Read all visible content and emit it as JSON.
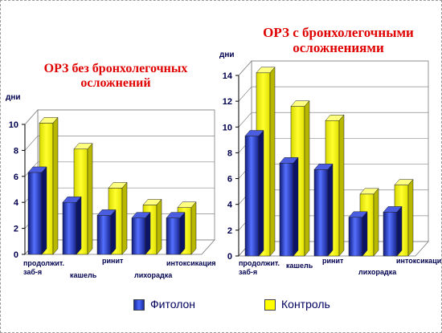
{
  "chart_data": [
    {
      "type": "bar",
      "title": "ОРЗ без бронхолегочных осложнений",
      "ylabel": "дни",
      "ylim": [
        0,
        10
      ],
      "yticks": [
        0,
        2,
        4,
        6,
        8,
        10
      ],
      "categories": [
        "продолжит. заб-я",
        "кашель",
        "ринит",
        "лихорадка",
        "интоксикация"
      ],
      "series": [
        {
          "name": "Фитолон",
          "color": "#2233cc",
          "values": [
            6.3,
            4.0,
            3.0,
            2.8,
            2.8
          ]
        },
        {
          "name": "Контроль",
          "color": "#ffff00",
          "values": [
            10.1,
            8.1,
            5.1,
            3.8,
            3.6
          ]
        }
      ],
      "grid": true
    },
    {
      "type": "bar",
      "title": "ОРЗ с бронхолегочными осложнениями",
      "ylabel": "дни",
      "ylim": [
        0,
        14
      ],
      "yticks": [
        0,
        2,
        4,
        6,
        8,
        10,
        12,
        14
      ],
      "categories": [
        "продолжит. заб-я",
        "кашель",
        "ринит",
        "лихорадка",
        "интоксикация"
      ],
      "series": [
        {
          "name": "Фитолон",
          "color": "#2233cc",
          "values": [
            9.3,
            7.2,
            6.7,
            3.0,
            3.4
          ]
        },
        {
          "name": "Контроль",
          "color": "#ffff00",
          "values": [
            14.2,
            11.6,
            10.5,
            4.8,
            5.5
          ]
        }
      ],
      "grid": true
    }
  ],
  "legend": [
    {
      "label": "Фитолон",
      "color": "#2233cc"
    },
    {
      "label": "Контроль",
      "color": "#ffff00"
    }
  ]
}
